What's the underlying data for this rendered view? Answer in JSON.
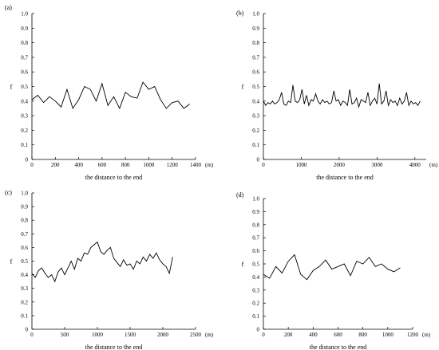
{
  "chart_data": [
    {
      "type": "line",
      "panel_label": "(a)",
      "xlabel": "the distance to the end",
      "ylabel": "f",
      "x_unit": "(m)",
      "xlim": [
        0,
        1400
      ],
      "ylim": [
        0,
        1.0
      ],
      "xticks": [
        0,
        200,
        400,
        600,
        800,
        1000,
        1200,
        1400
      ],
      "yticks": [
        0,
        0.1,
        0.2,
        0.3,
        0.4,
        0.5,
        0.6,
        0.7,
        0.8,
        0.9,
        1.0
      ],
      "ytick_labels": [
        "0",
        "0.1",
        "0.2",
        "0.3",
        "0.4",
        "0.5",
        "0.6",
        "0.7",
        "0.8",
        "0.9",
        "1.0"
      ],
      "x": [
        0,
        50,
        100,
        150,
        200,
        250,
        300,
        350,
        400,
        450,
        500,
        550,
        600,
        650,
        700,
        750,
        800,
        850,
        900,
        950,
        1000,
        1050,
        1100,
        1150,
        1200,
        1250,
        1300,
        1350
      ],
      "y": [
        0.41,
        0.44,
        0.39,
        0.43,
        0.4,
        0.36,
        0.48,
        0.35,
        0.41,
        0.5,
        0.48,
        0.4,
        0.52,
        0.37,
        0.43,
        0.35,
        0.46,
        0.43,
        0.42,
        0.53,
        0.48,
        0.5,
        0.41,
        0.35,
        0.39,
        0.4,
        0.35,
        0.38
      ]
    },
    {
      "type": "line",
      "panel_label": "(b)",
      "xlabel": "the distance to the end",
      "ylabel": "f",
      "x_unit": "(m)",
      "xlim": [
        0,
        4300
      ],
      "ylim": [
        0,
        1.0
      ],
      "xticks": [
        0,
        1000,
        2000,
        3000,
        4000
      ],
      "yticks": [
        0,
        0.1,
        0.2,
        0.3,
        0.4,
        0.5,
        0.6,
        0.7,
        0.8,
        0.9,
        1.0
      ],
      "ytick_labels": [
        "0",
        "0.1",
        "0.2",
        "0.3",
        "0.4",
        "0.5",
        "0.6",
        "0.7",
        "0.8",
        "0.9",
        "1.0"
      ],
      "x": [
        0,
        60,
        120,
        180,
        240,
        300,
        360,
        420,
        480,
        540,
        600,
        660,
        720,
        780,
        840,
        900,
        960,
        1020,
        1080,
        1140,
        1200,
        1260,
        1320,
        1380,
        1440,
        1500,
        1560,
        1620,
        1680,
        1740,
        1800,
        1860,
        1920,
        1980,
        2040,
        2100,
        2160,
        2220,
        2280,
        2340,
        2400,
        2460,
        2520,
        2580,
        2640,
        2700,
        2760,
        2820,
        2880,
        2940,
        3000,
        3060,
        3120,
        3180,
        3240,
        3300,
        3360,
        3420,
        3480,
        3540,
        3600,
        3660,
        3720,
        3780,
        3840,
        3900,
        3960,
        4020,
        4080,
        4140
      ],
      "y": [
        0.4,
        0.37,
        0.39,
        0.38,
        0.4,
        0.38,
        0.39,
        0.41,
        0.46,
        0.38,
        0.37,
        0.4,
        0.39,
        0.51,
        0.4,
        0.39,
        0.41,
        0.48,
        0.38,
        0.44,
        0.37,
        0.41,
        0.4,
        0.45,
        0.4,
        0.38,
        0.41,
        0.39,
        0.4,
        0.38,
        0.39,
        0.47,
        0.4,
        0.41,
        0.37,
        0.4,
        0.39,
        0.37,
        0.48,
        0.38,
        0.39,
        0.42,
        0.36,
        0.41,
        0.4,
        0.39,
        0.46,
        0.37,
        0.4,
        0.42,
        0.38,
        0.52,
        0.38,
        0.4,
        0.47,
        0.37,
        0.41,
        0.39,
        0.4,
        0.37,
        0.42,
        0.38,
        0.4,
        0.46,
        0.37,
        0.4,
        0.38,
        0.39,
        0.37,
        0.4
      ]
    },
    {
      "type": "line",
      "panel_label": "(c)",
      "xlabel": "the distance to the end",
      "ylabel": "f",
      "x_unit": "(m)",
      "xlim": [
        0,
        2500
      ],
      "ylim": [
        0,
        1.0
      ],
      "xticks": [
        0,
        500,
        1000,
        1500,
        2000,
        2500
      ],
      "yticks": [
        0,
        0.1,
        0.2,
        0.3,
        0.4,
        0.5,
        0.6,
        0.7,
        0.8,
        0.9,
        1.0
      ],
      "ytick_labels": [
        "0",
        "0.1",
        "0.2",
        "0.3",
        "0.4",
        "0.5",
        "0.6",
        "0.7",
        "0.8",
        "0.9",
        "1.0"
      ],
      "x": [
        0,
        50,
        100,
        150,
        200,
        250,
        300,
        350,
        400,
        450,
        500,
        550,
        600,
        650,
        700,
        750,
        800,
        850,
        900,
        950,
        1000,
        1050,
        1100,
        1150,
        1200,
        1250,
        1300,
        1350,
        1400,
        1450,
        1500,
        1550,
        1600,
        1650,
        1700,
        1750,
        1800,
        1850,
        1900,
        1950,
        2000,
        2050,
        2100,
        2150
      ],
      "y": [
        0.41,
        0.38,
        0.43,
        0.45,
        0.41,
        0.38,
        0.4,
        0.35,
        0.42,
        0.45,
        0.4,
        0.45,
        0.5,
        0.44,
        0.52,
        0.5,
        0.56,
        0.55,
        0.6,
        0.62,
        0.64,
        0.57,
        0.55,
        0.58,
        0.6,
        0.52,
        0.49,
        0.46,
        0.51,
        0.47,
        0.48,
        0.44,
        0.5,
        0.48,
        0.53,
        0.5,
        0.55,
        0.52,
        0.56,
        0.51,
        0.48,
        0.46,
        0.41,
        0.53
      ]
    },
    {
      "type": "line",
      "panel_label": "(d)",
      "xlabel": "the distance to the end",
      "ylabel": "f",
      "x_unit": "(m)",
      "xlim": [
        0,
        1200
      ],
      "ylim": [
        0,
        1.0
      ],
      "xticks": [
        0,
        200,
        400,
        600,
        800,
        1000,
        1200
      ],
      "yticks": [
        0,
        0.1,
        0.2,
        0.3,
        0.4,
        0.5,
        0.6,
        0.7,
        0.8,
        0.9,
        1.0
      ],
      "ytick_labels": [
        "0",
        "0.1",
        "0.2",
        "0.3",
        "0.4",
        "0.5",
        "0.6",
        "0.7",
        "0.8",
        "0.9",
        "1.0"
      ],
      "x": [
        0,
        50,
        100,
        150,
        200,
        250,
        300,
        350,
        400,
        450,
        500,
        550,
        600,
        650,
        700,
        750,
        800,
        850,
        900,
        950,
        1000,
        1050,
        1100
      ],
      "y": [
        0.42,
        0.39,
        0.48,
        0.43,
        0.52,
        0.57,
        0.42,
        0.38,
        0.45,
        0.48,
        0.53,
        0.46,
        0.48,
        0.5,
        0.41,
        0.52,
        0.5,
        0.55,
        0.48,
        0.5,
        0.46,
        0.44,
        0.47
      ]
    }
  ]
}
